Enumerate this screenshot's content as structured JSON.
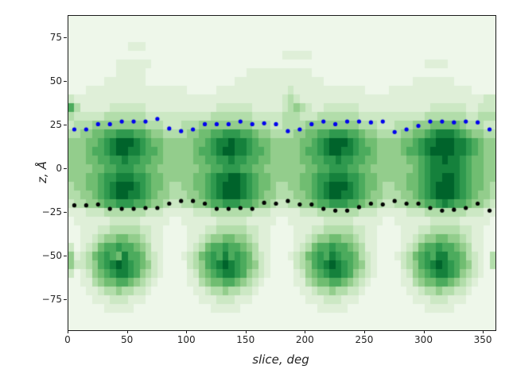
{
  "figure": {
    "background": "#ffffff",
    "plot_background": "#eef7ea",
    "spine_color": "#1a1a1a"
  },
  "chart_data": {
    "type": "heatmap",
    "title": "",
    "xlabel": "slice, deg",
    "ylabel": "z, Å",
    "x_range": [
      0,
      360
    ],
    "y_range": [
      -92.5,
      87.5
    ],
    "grid_on": false,
    "legend": "none",
    "x_ticks": [
      {
        "label": "0",
        "value": 0
      },
      {
        "label": "50",
        "value": 50
      },
      {
        "label": "100",
        "value": 100
      },
      {
        "label": "150",
        "value": 150
      },
      {
        "label": "200",
        "value": 200
      },
      {
        "label": "250",
        "value": 250
      },
      {
        "label": "300",
        "value": 300
      },
      {
        "label": "350",
        "value": 350
      }
    ],
    "y_ticks": [
      {
        "label": "75",
        "value": 75
      },
      {
        "label": "50",
        "value": 50
      },
      {
        "label": "25",
        "value": 25
      },
      {
        "label": "0",
        "value": 0
      },
      {
        "label": "−25",
        "value": -25
      },
      {
        "label": "−50",
        "value": -50
      },
      {
        "label": "−75",
        "value": -75
      }
    ],
    "heatmap": {
      "cols": 72,
      "rows": 36,
      "col_width_deg": 5,
      "row_height_z": 5,
      "palette": [
        "#eef7ea",
        "#dfefd8",
        "#cce8c4",
        "#b2ddaa",
        "#93cd8c",
        "#70bd71",
        "#4cab5d",
        "#2f994e",
        "#15813c",
        "#00632b"
      ],
      "grid": [
        [
          "000000000000000000",
          "000000000000000000",
          "000000000000000000",
          "000000000000000000"
        ],
        [
          "000000000000000000",
          "000000000000000000",
          "000000000000000000",
          "000000000000000000"
        ],
        [
          "000000000000000000",
          "000000000000000000",
          "000000000000000000",
          "000000000000000000"
        ],
        [
          "000000000011100000",
          "000000000000000000",
          "000000000000000000",
          "000000000000000000"
        ],
        [
          "000000000000000000",
          "000000000000000000",
          "111110000000000000",
          "000000000000000000"
        ],
        [
          "000000001111110000",
          "000000000000000000",
          "000000000000000000",
          "000000111100000000"
        ],
        [
          "000000001111100000",
          "000000000000111111",
          "111110000000000000",
          "000000000000000000"
        ],
        [
          "000000111111100000",
          "000000000011111111",
          "111111100000000000",
          "000011111110000000"
        ],
        [
          "000111111111111111",
          "110000011111111111",
          "121111111111110000",
          "111111111111110000"
        ],
        [
          "211111111111111111",
          "111111111111111111",
          "232111111111111111",
          "111111111111111122"
        ],
        [
          "631111122222211111",
          "111111122222211111",
          "234321122222211111",
          "111111122222211222"
        ],
        [
          "322222333333322222",
          "222222333333322222",
          "333222333333322222",
          "222222333333322333"
        ],
        [
          "233344444444433322",
          "233344444444433322",
          "333344444444433322",
          "233344455555433322"
        ],
        [
          "334455667776654433",
          "334455667776654433",
          "334455667776654433",
          "334455678887654433"
        ],
        [
          "444556789998765544",
          "444556788988765544",
          "444556789998765544",
          "445567889998876544"
        ],
        [
          "444566789988766544",
          "444566789988766544",
          "444566789988766544",
          "445667899998876544"
        ],
        [
          "444556677877665544",
          "444556677877665544",
          "444556677877665544",
          "444556788988765544"
        ],
        [
          "444455667776655444",
          "444455667776655444",
          "444455667776655444",
          "444456788888765544"
        ],
        [
          "444556778887765544",
          "444556788998765544",
          "444556778887765544",
          "444556788998765544"
        ],
        [
          "344556789998765543",
          "344556789998765543",
          "344556789998765543",
          "344556789998765543"
        ],
        [
          "334456789988765443",
          "334456789998765443",
          "334456789988765443",
          "334456789998765443"
        ],
        [
          "233445667776654432",
          "233445667776654432",
          "233445667776654432",
          "233445667876654432"
        ],
        [
          "111222333333322211",
          "111222333333322211",
          "111222333333322211",
          "111222333333322211"
        ],
        [
          "011111122222111110",
          "011111122222111110",
          "011111122222111110",
          "011111122222111110"
        ],
        [
          "001112233333221100",
          "001112233333221100",
          "001112233333221100",
          "001112233333221100"
        ],
        [
          "001123445544321100",
          "001123445544321100",
          "001123445544321100",
          "001123445544321100"
        ],
        [
          "201235667665431100",
          "001235667665431100",
          "001235667665431100",
          "001235667665431100"
        ],
        [
          "412356765866532100",
          "012356768676532100",
          "012356768766532100",
          "012356768866532103"
        ],
        [
          "422346789876542100",
          "002346789876542100",
          "002346789876542100",
          "002346789876542103"
        ],
        [
          "201245678876432100",
          "001245678876432100",
          "001245678876432100",
          "001245678876432100"
        ],
        [
          "001134556654321000",
          "001134556654321000",
          "001134556654321000",
          "001134556654321000"
        ],
        [
          "000112334332210000",
          "000112334332210000",
          "000112334332210000",
          "000112334332210000"
        ],
        [
          "000011122211100000",
          "000011122211100000",
          "000011122211100000",
          "000011122211100000"
        ],
        [
          "000000111110000000",
          "000000111110000000",
          "000000111110000000",
          "000000111110000000"
        ],
        [
          "000000000000000000",
          "000000000000000000",
          "000000000000000000",
          "000000000000000000"
        ],
        [
          "000000000000000000",
          "000000000000000000",
          "000000000000000000",
          "000000000000000000"
        ]
      ]
    },
    "series": [
      {
        "name": "upper-interface-dots",
        "type": "scatter",
        "color": "#0000ee",
        "marker_radius_px": 2.6,
        "x": [
          5,
          15,
          25,
          35,
          45,
          55,
          65,
          75,
          85,
          95,
          105,
          115,
          125,
          135,
          145,
          155,
          165,
          175,
          185,
          195,
          205,
          215,
          225,
          235,
          245,
          255,
          265,
          275,
          285,
          295,
          305,
          315,
          325,
          335,
          345,
          355
        ],
        "y": [
          22.5,
          22.5,
          25.5,
          25.5,
          27,
          27,
          27,
          28.5,
          23,
          21.5,
          22.5,
          25.5,
          25.5,
          25.5,
          27,
          25.5,
          26,
          25.5,
          21.5,
          22.5,
          25.5,
          27,
          25.5,
          27,
          27,
          26.5,
          27,
          21,
          22.5,
          24.5,
          27,
          27,
          26.5,
          27,
          26.5,
          22.5
        ]
      },
      {
        "name": "lower-interface-dots",
        "type": "scatter",
        "color": "#000000",
        "marker_radius_px": 2.6,
        "x": [
          5,
          15,
          25,
          35,
          45,
          55,
          65,
          75,
          85,
          95,
          105,
          115,
          125,
          135,
          145,
          155,
          165,
          175,
          185,
          195,
          205,
          215,
          225,
          235,
          245,
          255,
          265,
          275,
          285,
          295,
          305,
          315,
          325,
          335,
          345,
          355
        ],
        "y": [
          -21,
          -21,
          -20.5,
          -23,
          -23,
          -23,
          -22.5,
          -22.5,
          -20,
          -18.5,
          -18.5,
          -20,
          -23,
          -23,
          -22.5,
          -23,
          -19.5,
          -20,
          -18.5,
          -20.5,
          -20.5,
          -23,
          -24,
          -24,
          -22,
          -20,
          -20.5,
          -18.5,
          -20,
          -20,
          -22.5,
          -24,
          -23.5,
          -22.5,
          -20,
          -24
        ]
      }
    ]
  }
}
